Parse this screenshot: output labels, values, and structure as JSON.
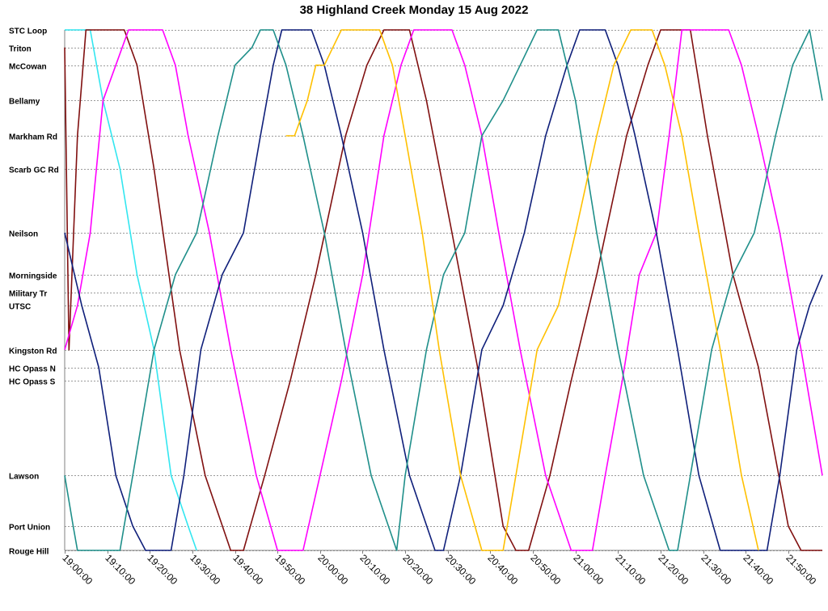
{
  "chart_data": {
    "type": "line",
    "title": "38 Highland Creek Monday 15 Aug 2022",
    "xlabel": "",
    "ylabel": "",
    "x_range": [
      "19:00:00",
      "21:58:00"
    ],
    "x_ticks": [
      "19:00:00",
      "19:10:00",
      "19:20:00",
      "19:30:00",
      "19:40:00",
      "19:50:00",
      "20:00:00",
      "20:10:00",
      "20:20:00",
      "20:30:00",
      "20:40:00",
      "20:50:00",
      "21:00:00",
      "21:10:00",
      "21:20:00",
      "21:30:00",
      "21:40:00",
      "21:50:00"
    ],
    "stops": [
      {
        "name": "STC Loop",
        "km": 0.0
      },
      {
        "name": "Triton",
        "km": 0.4
      },
      {
        "name": "McCowan",
        "km": 0.8
      },
      {
        "name": "Bellamy",
        "km": 1.6
      },
      {
        "name": "Markham Rd",
        "km": 2.4
      },
      {
        "name": "Scarb GC Rd",
        "km": 3.15
      },
      {
        "name": "Neilson",
        "km": 4.6
      },
      {
        "name": "Morningside",
        "km": 5.55
      },
      {
        "name": "Military Tr",
        "km": 5.95
      },
      {
        "name": "UTSC",
        "km": 6.25
      },
      {
        "name": "Kingston Rd",
        "km": 7.25
      },
      {
        "name": "HC Opass N",
        "km": 7.65
      },
      {
        "name": "HC Opass S",
        "km": 7.95
      },
      {
        "name": "Lawson",
        "km": 10.1
      },
      {
        "name": "Port Union",
        "km": 11.25
      },
      {
        "name": "Rouge Hill",
        "km": 11.8
      }
    ],
    "grid": true,
    "legend": "none",
    "series": [
      {
        "color": "#33e6f0",
        "points": [
          [
            "19:00",
            "STC Loop"
          ],
          [
            "19:03",
            "STC Loop"
          ],
          [
            "19:06",
            "STC Loop"
          ],
          [
            "19:09",
            "Bellamy"
          ],
          [
            "19:13",
            "Scarb GC Rd"
          ],
          [
            "19:17",
            "Morningside"
          ],
          [
            "19:21",
            "Kingston Rd"
          ],
          [
            "19:25",
            "Lawson"
          ],
          [
            "19:29",
            "Port Union"
          ],
          [
            "19:31",
            "Rouge Hill"
          ]
        ]
      },
      {
        "color": "#801010",
        "points": [
          [
            "19:00",
            "Triton"
          ],
          [
            "19:01",
            "Kingston Rd"
          ],
          [
            "19:03",
            "Markham Rd"
          ],
          [
            "19:05",
            "STC Loop"
          ],
          [
            "19:14",
            "STC Loop"
          ],
          [
            "19:17",
            "McCowan"
          ],
          [
            "19:21",
            "Scarb GC Rd"
          ],
          [
            "19:27",
            "Kingston Rd"
          ],
          [
            "19:33",
            "Lawson"
          ],
          [
            "19:39",
            "Rouge Hill"
          ],
          [
            "19:42",
            "Rouge Hill"
          ],
          [
            "19:47",
            "Lawson"
          ],
          [
            "19:53",
            "HC Opass S"
          ],
          [
            "19:59",
            "Morningside"
          ],
          [
            "20:06",
            "Markham Rd"
          ],
          [
            "20:11",
            "McCowan"
          ],
          [
            "20:15",
            "STC Loop"
          ],
          [
            "20:21",
            "STC Loop"
          ],
          [
            "20:25",
            "Bellamy"
          ],
          [
            "20:31",
            "Neilson"
          ],
          [
            "20:37",
            "HC Opass N"
          ],
          [
            "20:43",
            "Port Union"
          ],
          [
            "20:46",
            "Rouge Hill"
          ],
          [
            "20:49",
            "Rouge Hill"
          ],
          [
            "20:54",
            "Lawson"
          ],
          [
            "20:59",
            "HC Opass S"
          ],
          [
            "21:05",
            "Morningside"
          ],
          [
            "21:12",
            "Markham Rd"
          ],
          [
            "21:17",
            "McCowan"
          ],
          [
            "21:20",
            "STC Loop"
          ],
          [
            "21:27",
            "STC Loop"
          ],
          [
            "21:31",
            "Markham Rd"
          ],
          [
            "21:37",
            "Morningside"
          ],
          [
            "21:43",
            "HC Opass N"
          ],
          [
            "21:50",
            "Port Union"
          ],
          [
            "21:53",
            "Rouge Hill"
          ],
          [
            "21:58",
            "Rouge Hill"
          ]
        ]
      },
      {
        "color": "#ff00ff",
        "points": [
          [
            "19:00",
            "Kingston Rd"
          ],
          [
            "19:03",
            "UTSC"
          ],
          [
            "19:06",
            "Neilson"
          ],
          [
            "19:09",
            "Bellamy"
          ],
          [
            "19:12",
            "McCowan"
          ],
          [
            "19:15",
            "STC Loop"
          ],
          [
            "19:23",
            "STC Loop"
          ],
          [
            "19:26",
            "McCowan"
          ],
          [
            "19:29",
            "Markham Rd"
          ],
          [
            "19:34",
            "Neilson"
          ],
          [
            "19:39",
            "Kingston Rd"
          ],
          [
            "19:45",
            "Lawson"
          ],
          [
            "19:50",
            "Rouge Hill"
          ],
          [
            "19:56",
            "Rouge Hill"
          ],
          [
            "20:00",
            "Lawson"
          ],
          [
            "20:05",
            "HC Opass S"
          ],
          [
            "20:10",
            "Morningside"
          ],
          [
            "20:15",
            "Markham Rd"
          ],
          [
            "20:19",
            "McCowan"
          ],
          [
            "20:22",
            "STC Loop"
          ],
          [
            "20:31",
            "STC Loop"
          ],
          [
            "20:34",
            "McCowan"
          ],
          [
            "20:38",
            "Markham Rd"
          ],
          [
            "20:42",
            "Neilson"
          ],
          [
            "20:47",
            "Kingston Rd"
          ],
          [
            "20:53",
            "Lawson"
          ],
          [
            "20:59",
            "Rouge Hill"
          ],
          [
            "21:04",
            "Rouge Hill"
          ],
          [
            "21:07",
            "Lawson"
          ],
          [
            "21:11",
            "HC Opass S"
          ],
          [
            "21:15",
            "Morningside"
          ],
          [
            "21:19",
            "Neilson"
          ],
          [
            "21:22",
            "Markham Rd"
          ],
          [
            "21:25",
            "STC Loop"
          ],
          [
            "21:36",
            "STC Loop"
          ],
          [
            "21:39",
            "McCowan"
          ],
          [
            "21:43",
            "Markham Rd"
          ],
          [
            "21:48",
            "Neilson"
          ],
          [
            "21:53",
            "Kingston Rd"
          ],
          [
            "21:58",
            "Lawson"
          ]
        ]
      },
      {
        "color": "#0f1f7a",
        "points": [
          [
            "19:00",
            "Neilson"
          ],
          [
            "19:04",
            "UTSC"
          ],
          [
            "19:08",
            "HC Opass N"
          ],
          [
            "19:12",
            "Lawson"
          ],
          [
            "19:16",
            "Port Union"
          ],
          [
            "19:19",
            "Rouge Hill"
          ],
          [
            "19:25",
            "Rouge Hill"
          ],
          [
            "19:28",
            "Lawson"
          ],
          [
            "19:32",
            "Kingston Rd"
          ],
          [
            "19:37",
            "Morningside"
          ],
          [
            "19:42",
            "Neilson"
          ],
          [
            "19:46",
            "Markham Rd"
          ],
          [
            "19:49",
            "McCowan"
          ],
          [
            "19:51",
            "STC Loop"
          ],
          [
            "19:58",
            "STC Loop"
          ],
          [
            "20:01",
            "McCowan"
          ],
          [
            "20:05",
            "Markham Rd"
          ],
          [
            "20:10",
            "Neilson"
          ],
          [
            "20:15",
            "Kingston Rd"
          ],
          [
            "20:21",
            "Lawson"
          ],
          [
            "20:27",
            "Rouge Hill"
          ],
          [
            "20:29",
            "Rouge Hill"
          ],
          [
            "20:33",
            "Lawson"
          ],
          [
            "20:38",
            "Kingston Rd"
          ],
          [
            "20:43",
            "UTSC"
          ],
          [
            "20:48",
            "Neilson"
          ],
          [
            "20:53",
            "Markham Rd"
          ],
          [
            "20:58",
            "McCowan"
          ],
          [
            "21:01",
            "STC Loop"
          ],
          [
            "21:07",
            "STC Loop"
          ],
          [
            "21:10",
            "McCowan"
          ],
          [
            "21:14",
            "Markham Rd"
          ],
          [
            "21:19",
            "Neilson"
          ],
          [
            "21:24",
            "Kingston Rd"
          ],
          [
            "21:29",
            "Lawson"
          ],
          [
            "21:34",
            "Rouge Hill"
          ],
          [
            "21:45",
            "Rouge Hill"
          ],
          [
            "21:48",
            "Lawson"
          ],
          [
            "21:52",
            "Kingston Rd"
          ],
          [
            "21:55",
            "UTSC"
          ],
          [
            "21:58",
            "Morningside"
          ]
        ]
      },
      {
        "color": "#1f8f8a",
        "points": [
          [
            "19:00",
            "Lawson"
          ],
          [
            "19:02",
            "Port Union"
          ],
          [
            "19:03",
            "Rouge Hill"
          ],
          [
            "19:13",
            "Rouge Hill"
          ],
          [
            "19:16",
            "Lawson"
          ],
          [
            "19:21",
            "Kingston Rd"
          ],
          [
            "19:26",
            "Morningside"
          ],
          [
            "19:31",
            "Neilson"
          ],
          [
            "19:36",
            "Markham Rd"
          ],
          [
            "19:40",
            "McCowan"
          ],
          [
            "19:44",
            "Triton"
          ],
          [
            "19:46",
            "STC Loop"
          ],
          [
            "19:49",
            "STC Loop"
          ],
          [
            "19:52",
            "McCowan"
          ],
          [
            "19:56",
            "Markham Rd"
          ],
          [
            "20:01",
            "Neilson"
          ],
          [
            "20:06",
            "Kingston Rd"
          ],
          [
            "20:12",
            "Lawson"
          ],
          [
            "20:18",
            "Rouge Hill"
          ],
          [
            "20:20",
            "Lawson"
          ],
          [
            "20:25",
            "Kingston Rd"
          ],
          [
            "20:29",
            "Morningside"
          ],
          [
            "20:34",
            "Neilson"
          ],
          [
            "20:38",
            "Markham Rd"
          ],
          [
            "20:43",
            "Bellamy"
          ],
          [
            "20:47",
            "McCowan"
          ],
          [
            "20:51",
            "STC Loop"
          ],
          [
            "20:56",
            "STC Loop"
          ],
          [
            "21:00",
            "Bellamy"
          ],
          [
            "21:05",
            "Neilson"
          ],
          [
            "21:10",
            "Kingston Rd"
          ],
          [
            "21:16",
            "Lawson"
          ],
          [
            "21:22",
            "Rouge Hill"
          ],
          [
            "21:24",
            "Rouge Hill"
          ],
          [
            "21:27",
            "Lawson"
          ],
          [
            "21:32",
            "Kingston Rd"
          ],
          [
            "21:37",
            "Morningside"
          ],
          [
            "21:42",
            "Neilson"
          ],
          [
            "21:47",
            "Markham Rd"
          ],
          [
            "21:51",
            "McCowan"
          ],
          [
            "21:55",
            "STC Loop"
          ],
          [
            "21:58",
            "Bellamy"
          ]
        ]
      },
      {
        "color": "#ffc000",
        "points": [
          [
            "19:52",
            "Markham Rd"
          ],
          [
            "19:54",
            "Markham Rd"
          ],
          [
            "19:57",
            "Bellamy"
          ],
          [
            "19:59",
            "McCowan"
          ],
          [
            "20:01",
            "McCowan"
          ],
          [
            "20:03",
            "Triton"
          ],
          [
            "20:05",
            "STC Loop"
          ],
          [
            "20:14",
            "STC Loop"
          ],
          [
            "20:17",
            "McCowan"
          ],
          [
            "20:20",
            "Markham Rd"
          ],
          [
            "20:24",
            "Neilson"
          ],
          [
            "20:28",
            "Kingston Rd"
          ],
          [
            "20:33",
            "Lawson"
          ],
          [
            "20:38",
            "Rouge Hill"
          ],
          [
            "20:43",
            "Rouge Hill"
          ],
          [
            "20:46",
            "Lawson"
          ],
          [
            "20:51",
            "Kingston Rd"
          ],
          [
            "20:56",
            "UTSC"
          ],
          [
            "21:00",
            "Neilson"
          ],
          [
            "21:05",
            "Markham Rd"
          ],
          [
            "21:09",
            "McCowan"
          ],
          [
            "21:13",
            "STC Loop"
          ],
          [
            "21:18",
            "STC Loop"
          ],
          [
            "21:21",
            "McCowan"
          ],
          [
            "21:25",
            "Markham Rd"
          ],
          [
            "21:29",
            "Neilson"
          ],
          [
            "21:34",
            "Kingston Rd"
          ],
          [
            "21:39",
            "Lawson"
          ],
          [
            "21:43",
            "Rouge Hill"
          ]
        ]
      }
    ]
  }
}
